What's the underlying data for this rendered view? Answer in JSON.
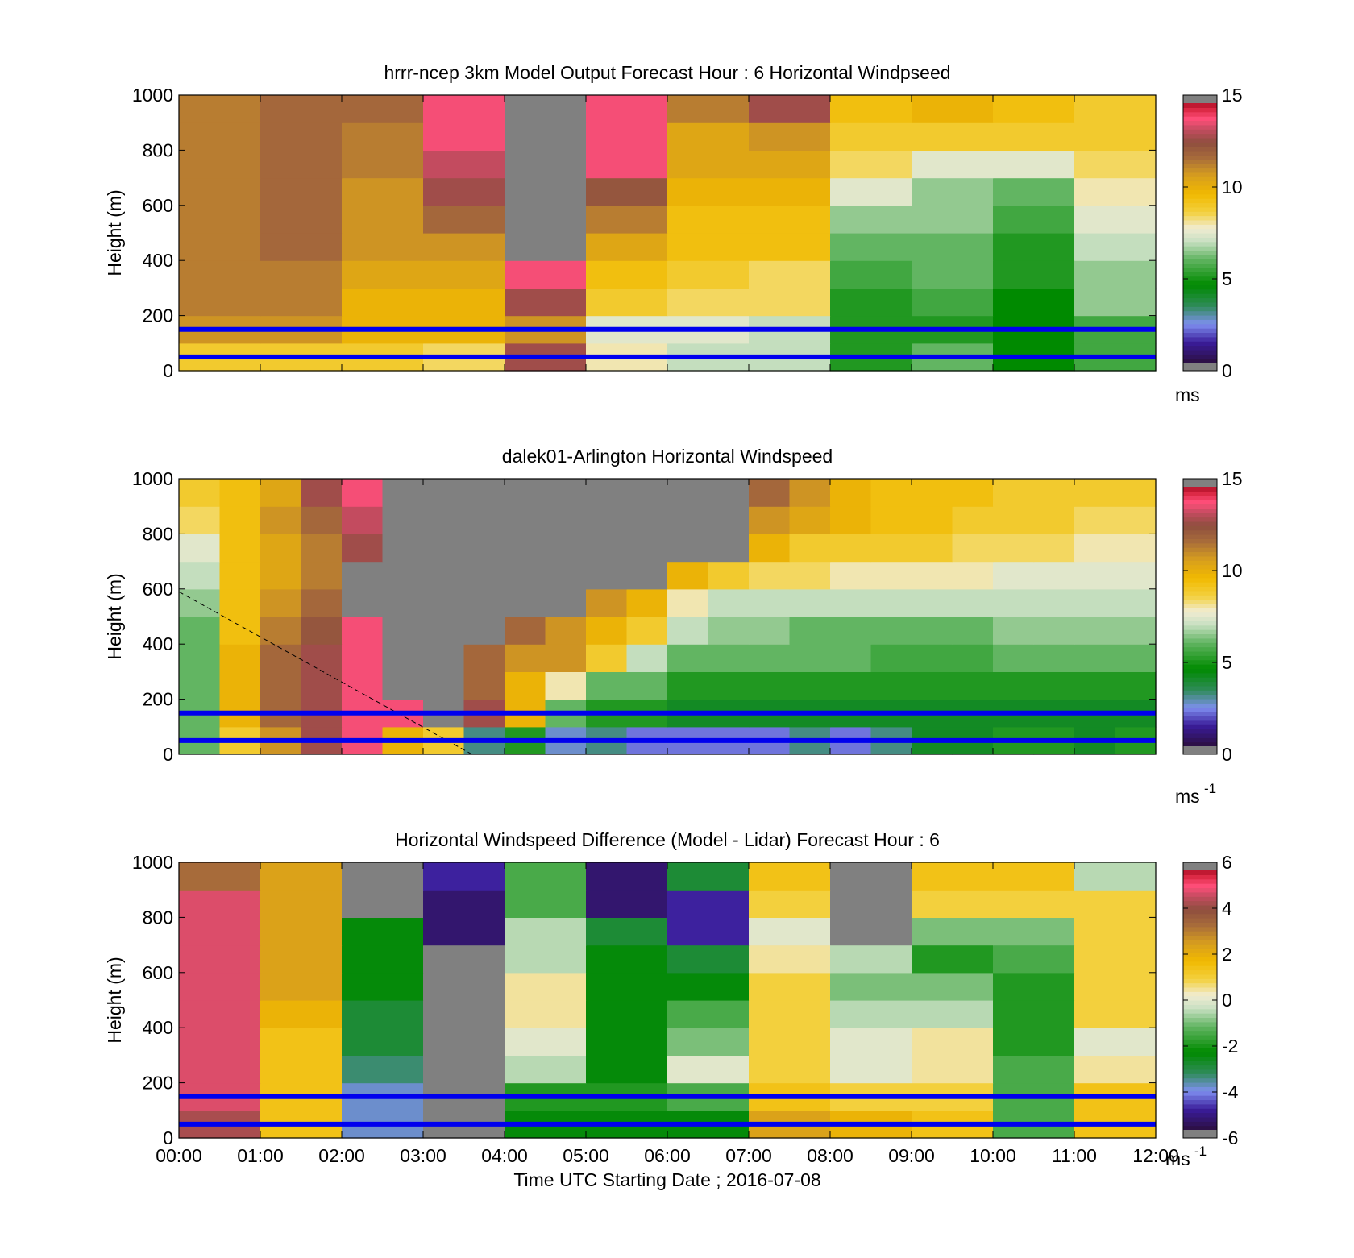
{
  "figure": {
    "x_axis_label": "Time UTC  Starting Date ; 2016-07-08",
    "x_tick_labels": [
      "00:00",
      "01:00",
      "02:00",
      "03:00",
      "04:00",
      "05:00",
      "06:00",
      "07:00",
      "08:00",
      "09:00",
      "10:00",
      "11:00",
      "12:00"
    ],
    "overlay_line_color": "#0000ee"
  },
  "chart_data": [
    {
      "type": "heatmap",
      "title": "hrrr-ncep 3km Model Output   Forecast Hour : 6 Horizontal Windpseed",
      "ylabel": "Height (m)",
      "xlabel": "",
      "xlim": [
        0,
        12
      ],
      "ylim": [
        0,
        1000
      ],
      "y_ticks": [
        "0",
        "200",
        "400",
        "600",
        "800",
        "1000"
      ],
      "colorbar": {
        "min": 0,
        "max": 15,
        "ticks": [
          "0",
          "5",
          "10",
          "15"
        ],
        "unit": "ms",
        "unit_sup": ""
      },
      "reference_lines_m": [
        50,
        150
      ],
      "x": [
        0.5,
        1.5,
        2.5,
        3.5,
        4.5,
        5.5,
        6.5,
        7.5,
        8.5,
        9.5,
        10.5,
        11.5
      ],
      "y": [
        50,
        150,
        250,
        350,
        450,
        550,
        650,
        750,
        850,
        950
      ],
      "z": [
        [
          9,
          9,
          9,
          8.5,
          13,
          8,
          7,
          7,
          5,
          6,
          4.5,
          5.5
        ],
        [
          11,
          11,
          10,
          10,
          11,
          7.5,
          7.5,
          7,
          5,
          5,
          4.5,
          5.5
        ],
        [
          11.5,
          11.5,
          10,
          10,
          13,
          9,
          8.5,
          8.5,
          5,
          5.5,
          4.5,
          6.5
        ],
        [
          11.5,
          11.5,
          10.5,
          10.5,
          14,
          9.5,
          9,
          8.5,
          5.5,
          6,
          5,
          6.5
        ],
        [
          11.5,
          12,
          11,
          11,
          null,
          10.5,
          9.5,
          9.5,
          6,
          6,
          5,
          7
        ],
        [
          11.5,
          12,
          11,
          12,
          null,
          11.5,
          9.5,
          9.5,
          6.5,
          6.5,
          5.5,
          7.5
        ],
        [
          11.5,
          12,
          11,
          13,
          null,
          12.5,
          10,
          10,
          7.5,
          6.5,
          6,
          8
        ],
        [
          11.5,
          12,
          11.5,
          13.5,
          null,
          14,
          10.5,
          10.5,
          8.5,
          7.5,
          7.5,
          8.5
        ],
        [
          11.5,
          12,
          11.5,
          14,
          null,
          14,
          10.5,
          11,
          9,
          9,
          9,
          9
        ],
        [
          11.5,
          12,
          12,
          14,
          null,
          14,
          11.5,
          13,
          9.5,
          10,
          9.5,
          9
        ]
      ]
    },
    {
      "type": "heatmap",
      "title": "dalek01-Arlington  Horizontal Windspeed",
      "ylabel": "Height (m)",
      "xlabel": "",
      "xlim": [
        0,
        12
      ],
      "ylim": [
        0,
        1000
      ],
      "y_ticks": [
        "0",
        "200",
        "400",
        "600",
        "800",
        "1000"
      ],
      "colorbar": {
        "min": 0,
        "max": 15,
        "ticks": [
          "0",
          "5",
          "10",
          "15"
        ],
        "unit": "ms",
        "unit_sup": "-1"
      },
      "reference_lines_m": [
        50,
        150
      ],
      "dashed_line": {
        "x": [
          0,
          3.6
        ],
        "y": [
          590,
          0
        ]
      },
      "x": [
        0.25,
        0.75,
        1.25,
        1.75,
        2.25,
        2.75,
        3.25,
        3.75,
        4.25,
        4.75,
        5.25,
        5.75,
        6.25,
        6.75,
        7.25,
        7.75,
        8.25,
        8.75,
        9.25,
        9.75,
        10.25,
        10.75,
        11.25,
        11.75
      ],
      "y": [
        50,
        150,
        250,
        350,
        450,
        550,
        650,
        750,
        850,
        950
      ],
      "z": [
        [
          6,
          9,
          11,
          13,
          14,
          10,
          9,
          3,
          5,
          2.5,
          3,
          2,
          2,
          2,
          2,
          3,
          2,
          3,
          4,
          4,
          5,
          5,
          4,
          5
        ],
        [
          6,
          10,
          12,
          13,
          14,
          14,
          null,
          13,
          10,
          6,
          5,
          5,
          4,
          4,
          4,
          4,
          4,
          4,
          4,
          4,
          4,
          4,
          4,
          4
        ],
        [
          6,
          10,
          12,
          13,
          14,
          null,
          null,
          12,
          10,
          8,
          6,
          6,
          5,
          5,
          5,
          5,
          5,
          5,
          5,
          5,
          5,
          5,
          5,
          5
        ],
        [
          6,
          10,
          12,
          13,
          14,
          null,
          null,
          12,
          11,
          11,
          9,
          7,
          6,
          6,
          6,
          6,
          6,
          5.5,
          5.5,
          5.5,
          6,
          6,
          6,
          6
        ],
        [
          6,
          9.5,
          11.5,
          12.5,
          14,
          null,
          null,
          null,
          12,
          11,
          10,
          9,
          7,
          6.5,
          6.5,
          6,
          6,
          6,
          6,
          6,
          6.5,
          6.5,
          6.5,
          6.5
        ],
        [
          6.5,
          9.5,
          11,
          12,
          null,
          null,
          null,
          null,
          null,
          null,
          11,
          10,
          8,
          7,
          7,
          7,
          7,
          7,
          7,
          7,
          7,
          7,
          7,
          7
        ],
        [
          7,
          9.5,
          10.5,
          11.5,
          null,
          null,
          null,
          null,
          null,
          null,
          null,
          null,
          10,
          9,
          8.5,
          8.5,
          8,
          8,
          8,
          8,
          7.5,
          7.5,
          7.5,
          7.5
        ],
        [
          7.5,
          9.5,
          10.5,
          11.5,
          13,
          null,
          null,
          null,
          null,
          null,
          null,
          null,
          null,
          null,
          10,
          9,
          9,
          9,
          9,
          8.5,
          8.5,
          8.5,
          8,
          8
        ],
        [
          8.5,
          9.5,
          11,
          12,
          13.5,
          null,
          null,
          null,
          null,
          null,
          null,
          null,
          null,
          null,
          11,
          10.5,
          10,
          9.5,
          9.5,
          9,
          9,
          9,
          8.5,
          8.5
        ],
        [
          9,
          9.5,
          10.5,
          13,
          14,
          null,
          null,
          null,
          null,
          null,
          null,
          null,
          null,
          null,
          12,
          11,
          10,
          9.5,
          9.5,
          9.5,
          9,
          9,
          9,
          9
        ]
      ]
    },
    {
      "type": "heatmap",
      "title": "Horizontal Windspeed Difference (Model - Lidar) Forecast Hour : 6",
      "ylabel": "Height (m)",
      "xlabel": "Time UTC  Starting Date ; 2016-07-08",
      "xlim": [
        0,
        12
      ],
      "ylim": [
        0,
        1000
      ],
      "y_ticks": [
        "0",
        "200",
        "400",
        "600",
        "800",
        "1000"
      ],
      "colorbar": {
        "min": -6,
        "max": 6,
        "ticks": [
          "-6",
          "-4",
          "-2",
          "0",
          "2",
          "4",
          "6"
        ],
        "unit": "ms",
        "unit_sup": "-1"
      },
      "reference_lines_m": [
        50,
        150
      ],
      "x": [
        0.5,
        1.5,
        2.5,
        3.5,
        4.5,
        5.5,
        6.5,
        7.5,
        8.5,
        9.5,
        10.5,
        11.5
      ],
      "y": [
        50,
        150,
        250,
        350,
        450,
        550,
        650,
        750,
        850,
        950
      ],
      "z": [
        [
          4.5,
          1.5,
          -4,
          null,
          -2.5,
          -2.5,
          -2.5,
          2.5,
          2,
          1.5,
          -1.5,
          1.5
        ],
        [
          5,
          1.5,
          -4,
          null,
          -2,
          -2,
          -1.5,
          1.5,
          1,
          1,
          -1.5,
          1.5
        ],
        [
          5,
          1.5,
          -3.5,
          null,
          -0.5,
          -2.5,
          0,
          1,
          0,
          0.5,
          -1.5,
          0.5
        ],
        [
          5,
          1.5,
          -3,
          null,
          0,
          -2.5,
          -1,
          1,
          0,
          0.5,
          -2,
          0
        ],
        [
          5,
          2,
          -3,
          null,
          0.5,
          -2.5,
          -1.5,
          1,
          -0.5,
          -0.5,
          -2,
          1
        ],
        [
          5,
          2.5,
          -2.5,
          null,
          0.5,
          -2.5,
          -2.5,
          1,
          -1,
          -1,
          -2,
          1
        ],
        [
          5,
          2.5,
          -2.5,
          null,
          -0.5,
          -2.5,
          -3,
          0.5,
          -0.5,
          -2,
          -1.5,
          1
        ],
        [
          5,
          2.5,
          -2.5,
          -5.5,
          -0.5,
          -3,
          -5,
          0,
          null,
          -1,
          -1,
          1
        ],
        [
          5,
          2.5,
          null,
          -5.5,
          -1.5,
          -5.5,
          -5,
          1,
          null,
          1,
          1,
          1
        ],
        [
          3.5,
          2.5,
          null,
          -5,
          -1.5,
          -5.5,
          -3,
          1.5,
          null,
          1.5,
          1.5,
          -0.5
        ]
      ]
    }
  ]
}
